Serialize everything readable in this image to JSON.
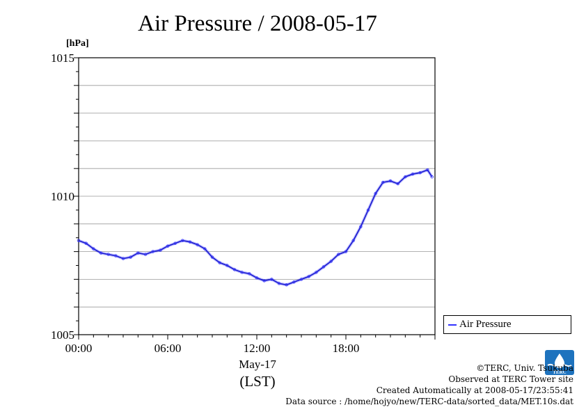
{
  "page": {
    "title": "Air Pressure / 2008-05-17",
    "unit_label": "[hPa]",
    "x_date_label": "May-17",
    "x_tz_label": "(LST)",
    "legend_label": "Air Pressure",
    "credits": [
      "©TERC, Univ. Tsukuba",
      "Observed at TERC Tower site",
      "Created Automatically at 2008-05-17/23:55:41",
      "Data source : /home/hojyo/new/TERC-data/sorted_data/MET.10s.dat"
    ],
    "logo_text": "TERC",
    "colors": {
      "series": "#3333ff",
      "line": "#1a1acc",
      "grid": "#999999",
      "axis": "#000000"
    }
  },
  "chart_data": {
    "type": "line",
    "title": "Air Pressure / 2008-05-17",
    "ylabel": "[hPa]",
    "xlabel": "May-17 (LST)",
    "ylim": [
      1005,
      1015
    ],
    "xlim": [
      0,
      24
    ],
    "y_ticks": [
      1005,
      1010,
      1015
    ],
    "y_grid_step": 1,
    "x_ticks": [
      {
        "x": 0,
        "label": "00:00"
      },
      {
        "x": 6,
        "label": "06:00"
      },
      {
        "x": 12,
        "label": "12:00"
      },
      {
        "x": 18,
        "label": "18:00"
      }
    ],
    "grid": "horizontal",
    "legend": "right-bottom",
    "series": [
      {
        "name": "Air Pressure",
        "x": [
          0,
          0.5,
          1,
          1.5,
          2,
          2.5,
          3,
          3.5,
          4,
          4.5,
          5,
          5.5,
          6,
          6.5,
          7,
          7.5,
          8,
          8.5,
          9,
          9.5,
          10,
          10.5,
          11,
          11.5,
          12,
          12.5,
          13,
          13.5,
          14,
          14.5,
          15,
          15.5,
          16,
          16.5,
          17,
          17.5,
          18,
          18.5,
          19,
          19.5,
          20,
          20.5,
          21,
          21.5,
          22,
          22.5,
          23,
          23.5,
          23.8
        ],
        "values": [
          1008.4,
          1008.3,
          1008.1,
          1007.95,
          1007.9,
          1007.85,
          1007.75,
          1007.8,
          1007.95,
          1007.9,
          1008.0,
          1008.05,
          1008.2,
          1008.3,
          1008.4,
          1008.35,
          1008.25,
          1008.1,
          1007.8,
          1007.6,
          1007.5,
          1007.35,
          1007.25,
          1007.2,
          1007.05,
          1006.95,
          1007.0,
          1006.85,
          1006.8,
          1006.9,
          1007.0,
          1007.1,
          1007.25,
          1007.45,
          1007.65,
          1007.9,
          1008.0,
          1008.4,
          1008.9,
          1009.5,
          1010.1,
          1010.5,
          1010.55,
          1010.45,
          1010.7,
          1010.8,
          1010.85,
          1010.95,
          1010.7
        ]
      }
    ]
  }
}
